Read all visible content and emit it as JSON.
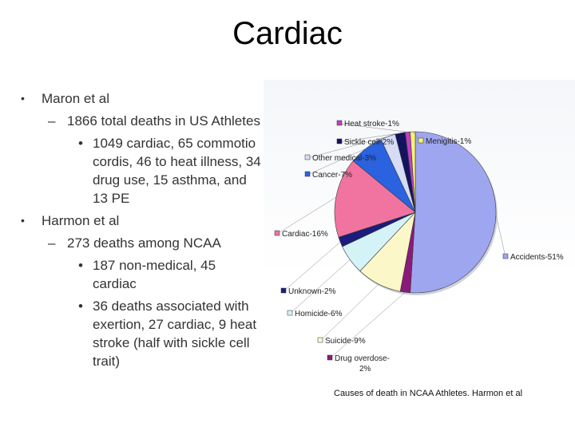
{
  "slide": {
    "title": "Cardiac",
    "bullets": [
      {
        "level": 1,
        "marker": "•",
        "text": "Maron et al"
      },
      {
        "level": 2,
        "marker": "–",
        "text": "1866 total deaths in US Athletes"
      },
      {
        "level": 3,
        "marker": "•",
        "text": "1049 cardiac, 65 commotio cordis, 46 to heat illness, 34 drug use, 15 asthma, and 13 PE"
      },
      {
        "level": 1,
        "marker": "•",
        "text": "Harmon et al"
      },
      {
        "level": 2,
        "marker": "–",
        "text": "273 deaths among NCAA"
      },
      {
        "level": 3,
        "marker": "•",
        "text": "187 non-medical, 45 cardiac"
      },
      {
        "level": 3,
        "marker": "•",
        "text": "36 deaths associated with exertion, 27 cardiac, 9 heat stroke (half with sickle cell trait)"
      }
    ]
  },
  "chart_data": {
    "type": "pie",
    "title": "",
    "caption": "Causes of death in NCAA Athletes. Harmon et al",
    "slices": [
      {
        "label": "Accidents-51%",
        "value": 51,
        "color": "#9fa6f0"
      },
      {
        "label": "Drug overdose-2%",
        "value": 2,
        "color": "#8b1a7a"
      },
      {
        "label": "Suicide-9%",
        "value": 9,
        "color": "#fbf7c8"
      },
      {
        "label": "Homicide-6%",
        "value": 6,
        "color": "#d4f3f7"
      },
      {
        "label": "Unknown-2%",
        "value": 2,
        "color": "#1c1c7c"
      },
      {
        "label": "Cardiac-16%",
        "value": 16,
        "color": "#f0749f"
      },
      {
        "label": "Cancer-7%",
        "value": 7,
        "color": "#2a62e0"
      },
      {
        "label": "Other medical-3%",
        "value": 3,
        "color": "#d6dcf6"
      },
      {
        "label": "Sickle cell-2%",
        "value": 2,
        "color": "#131360"
      },
      {
        "label": "Heat stroke-1%",
        "value": 1,
        "color": "#c040c0"
      },
      {
        "label": "Menigitis-1%",
        "value": 1,
        "color": "#f6f27a"
      }
    ]
  }
}
